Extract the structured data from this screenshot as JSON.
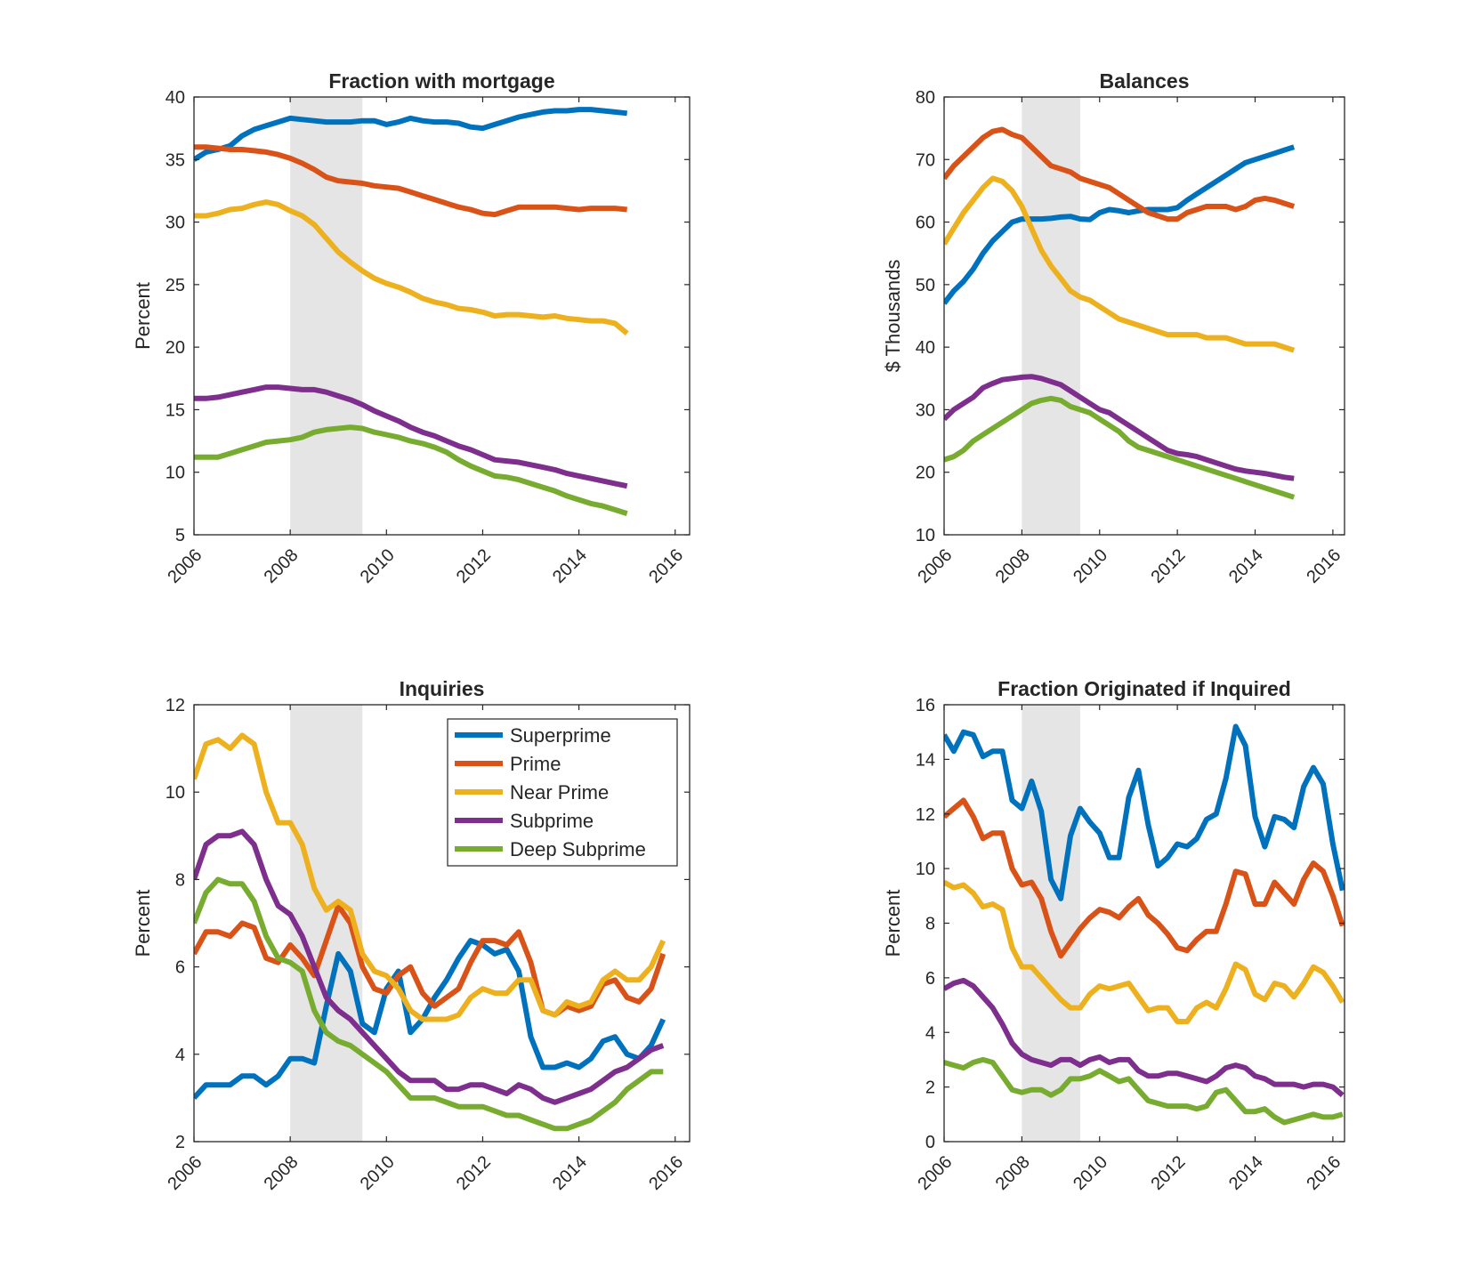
{
  "chart_data": [
    {
      "type": "line",
      "title": "Fraction with mortgage",
      "xlabel": "",
      "ylabel": "Percent",
      "xlim": [
        2006,
        2016.3
      ],
      "ylim": [
        5,
        40
      ],
      "yticks": [
        5,
        10,
        15,
        20,
        25,
        30,
        35,
        40
      ],
      "xticks": [
        2006,
        2008,
        2010,
        2012,
        2014,
        2016
      ],
      "recession": [
        2008.0,
        2009.5
      ],
      "x_start": 2006.0,
      "x_step": 0.25,
      "series": [
        {
          "name": "Superprime",
          "color": "#0072BD",
          "values": [
            35.0,
            35.6,
            35.8,
            36.1,
            36.9,
            37.4,
            37.7,
            38.0,
            38.3,
            38.2,
            38.1,
            38.0,
            38.0,
            38.0,
            38.1,
            38.1,
            37.8,
            38.0,
            38.3,
            38.1,
            38.0,
            38.0,
            37.9,
            37.6,
            37.5,
            37.8,
            38.1,
            38.4,
            38.6,
            38.8,
            38.9,
            38.9,
            39.0,
            39.0,
            38.9,
            38.8,
            38.7
          ]
        },
        {
          "name": "Prime",
          "color": "#D95319",
          "values": [
            36.0,
            36.0,
            35.9,
            35.8,
            35.8,
            35.7,
            35.6,
            35.4,
            35.1,
            34.7,
            34.2,
            33.6,
            33.3,
            33.2,
            33.1,
            32.9,
            32.8,
            32.7,
            32.4,
            32.1,
            31.8,
            31.5,
            31.2,
            31.0,
            30.7,
            30.6,
            30.9,
            31.2,
            31.2,
            31.2,
            31.2,
            31.1,
            31.0,
            31.1,
            31.1,
            31.1,
            31.0
          ]
        },
        {
          "name": "Near Prime",
          "color": "#EDB120",
          "values": [
            30.5,
            30.5,
            30.7,
            31.0,
            31.1,
            31.4,
            31.6,
            31.4,
            30.9,
            30.5,
            29.8,
            28.7,
            27.6,
            26.8,
            26.1,
            25.5,
            25.1,
            24.8,
            24.4,
            23.9,
            23.6,
            23.4,
            23.1,
            23.0,
            22.8,
            22.5,
            22.6,
            22.6,
            22.5,
            22.4,
            22.5,
            22.3,
            22.2,
            22.1,
            22.1,
            21.9,
            21.1
          ]
        },
        {
          "name": "Subprime",
          "color": "#7E2F8E",
          "values": [
            15.9,
            15.9,
            16.0,
            16.2,
            16.4,
            16.6,
            16.8,
            16.8,
            16.7,
            16.6,
            16.6,
            16.4,
            16.1,
            15.8,
            15.4,
            14.9,
            14.5,
            14.1,
            13.6,
            13.2,
            12.9,
            12.5,
            12.1,
            11.8,
            11.4,
            11.0,
            10.9,
            10.8,
            10.6,
            10.4,
            10.2,
            9.9,
            9.7,
            9.5,
            9.3,
            9.1,
            8.9
          ]
        },
        {
          "name": "Deep Subprime",
          "color": "#77AC30",
          "values": [
            11.2,
            11.2,
            11.2,
            11.5,
            11.8,
            12.1,
            12.4,
            12.5,
            12.6,
            12.8,
            13.2,
            13.4,
            13.5,
            13.6,
            13.5,
            13.2,
            13.0,
            12.8,
            12.5,
            12.3,
            12.0,
            11.6,
            11.0,
            10.5,
            10.1,
            9.7,
            9.6,
            9.4,
            9.1,
            8.8,
            8.5,
            8.1,
            7.8,
            7.5,
            7.3,
            7.0,
            6.7
          ]
        }
      ]
    },
    {
      "type": "line",
      "title": "Balances",
      "xlabel": "",
      "ylabel": "$ Thousands",
      "xlim": [
        2006,
        2016.3
      ],
      "ylim": [
        10,
        80
      ],
      "yticks": [
        10,
        20,
        30,
        40,
        50,
        60,
        70,
        80
      ],
      "xticks": [
        2006,
        2008,
        2010,
        2012,
        2014,
        2016
      ],
      "recession": [
        2008.0,
        2009.5
      ],
      "x_start": 2006.0,
      "x_step": 0.25,
      "series": [
        {
          "name": "Superprime",
          "color": "#0072BD",
          "values": [
            47.0,
            49.0,
            50.5,
            52.5,
            55.0,
            57.0,
            58.5,
            60.0,
            60.5,
            60.5,
            60.5,
            60.6,
            60.8,
            60.9,
            60.5,
            60.4,
            61.5,
            62.0,
            61.8,
            61.5,
            61.8,
            62.0,
            62.0,
            62.0,
            62.3,
            63.5,
            64.5,
            65.5,
            66.5,
            67.5,
            68.5,
            69.5,
            70.0,
            70.5,
            71.0,
            71.5,
            72.0
          ]
        },
        {
          "name": "Prime",
          "color": "#D95319",
          "values": [
            67.0,
            69.0,
            70.5,
            72.0,
            73.5,
            74.5,
            74.8,
            74.0,
            73.5,
            72.0,
            70.5,
            69.0,
            68.5,
            68.0,
            67.0,
            66.5,
            66.0,
            65.5,
            64.5,
            63.5,
            62.5,
            61.5,
            61.0,
            60.5,
            60.5,
            61.5,
            62.0,
            62.5,
            62.5,
            62.5,
            62.0,
            62.5,
            63.5,
            63.8,
            63.5,
            63.0,
            62.5
          ]
        },
        {
          "name": "Near Prime",
          "color": "#EDB120",
          "values": [
            56.5,
            59.0,
            61.5,
            63.5,
            65.5,
            67.0,
            66.5,
            65.0,
            62.5,
            59.0,
            55.5,
            53.0,
            51.0,
            49.0,
            48.0,
            47.5,
            46.5,
            45.5,
            44.5,
            44.0,
            43.5,
            43.0,
            42.5,
            42.0,
            42.0,
            42.0,
            42.0,
            41.5,
            41.5,
            41.5,
            41.0,
            40.5,
            40.5,
            40.5,
            40.5,
            40.0,
            39.5
          ]
        },
        {
          "name": "Subprime",
          "color": "#7E2F8E",
          "values": [
            28.5,
            30.0,
            31.0,
            32.0,
            33.5,
            34.2,
            34.8,
            35.0,
            35.2,
            35.3,
            35.0,
            34.5,
            34.0,
            33.0,
            32.0,
            31.0,
            30.0,
            29.5,
            28.5,
            27.5,
            26.5,
            25.5,
            24.5,
            23.5,
            23.0,
            22.8,
            22.5,
            22.0,
            21.5,
            21.0,
            20.5,
            20.2,
            20.0,
            19.8,
            19.5,
            19.2,
            19.0
          ]
        },
        {
          "name": "Deep Subprime",
          "color": "#77AC30",
          "values": [
            22.0,
            22.5,
            23.5,
            25.0,
            26.0,
            27.0,
            28.0,
            29.0,
            30.0,
            31.0,
            31.5,
            31.8,
            31.5,
            30.5,
            30.0,
            29.5,
            28.5,
            27.5,
            26.5,
            25.0,
            24.0,
            23.5,
            23.0,
            22.5,
            22.0,
            21.5,
            21.0,
            20.5,
            20.0,
            19.5,
            19.0,
            18.5,
            18.0,
            17.5,
            17.0,
            16.5,
            16.0
          ]
        }
      ]
    },
    {
      "type": "line",
      "title": "Inquiries",
      "xlabel": "",
      "ylabel": "Percent",
      "xlim": [
        2006,
        2016.3
      ],
      "ylim": [
        2,
        12
      ],
      "yticks": [
        2,
        4,
        6,
        8,
        10,
        12
      ],
      "xticks": [
        2006,
        2008,
        2010,
        2012,
        2014,
        2016
      ],
      "recession": [
        2008.0,
        2009.5
      ],
      "legend": "top-right",
      "x_start": 2006.0,
      "x_step": 0.25,
      "series": [
        {
          "name": "Superprime",
          "color": "#0072BD",
          "values": [
            3.0,
            3.3,
            3.3,
            3.3,
            3.5,
            3.5,
            3.3,
            3.5,
            3.9,
            3.9,
            3.8,
            5.1,
            6.3,
            5.9,
            4.7,
            4.5,
            5.5,
            5.9,
            4.5,
            4.8,
            5.3,
            5.7,
            6.2,
            6.6,
            6.5,
            6.3,
            6.4,
            5.9,
            4.4,
            3.7,
            3.7,
            3.8,
            3.7,
            3.9,
            4.3,
            4.4,
            4.0,
            3.9,
            4.2,
            4.8
          ]
        },
        {
          "name": "Prime",
          "color": "#D95319",
          "values": [
            6.3,
            6.8,
            6.8,
            6.7,
            7.0,
            6.9,
            6.2,
            6.1,
            6.5,
            6.2,
            5.8,
            6.6,
            7.4,
            7.0,
            6.0,
            5.5,
            5.4,
            5.8,
            6.0,
            5.4,
            5.1,
            5.3,
            5.5,
            6.1,
            6.6,
            6.6,
            6.5,
            6.8,
            6.1,
            5.0,
            4.9,
            5.1,
            5.0,
            5.1,
            5.6,
            5.7,
            5.3,
            5.2,
            5.5,
            6.3
          ]
        },
        {
          "name": "Near Prime",
          "color": "#EDB120",
          "values": [
            10.3,
            11.1,
            11.2,
            11.0,
            11.3,
            11.1,
            10.0,
            9.3,
            9.3,
            8.8,
            7.8,
            7.3,
            7.5,
            7.3,
            6.3,
            5.9,
            5.8,
            5.5,
            5.0,
            4.8,
            4.8,
            4.8,
            4.9,
            5.3,
            5.5,
            5.4,
            5.4,
            5.7,
            5.7,
            5.0,
            4.9,
            5.2,
            5.1,
            5.2,
            5.7,
            5.9,
            5.7,
            5.7,
            6.0,
            6.6
          ]
        },
        {
          "name": "Subprime",
          "color": "#7E2F8E",
          "values": [
            8.0,
            8.8,
            9.0,
            9.0,
            9.1,
            8.8,
            8.0,
            7.4,
            7.2,
            6.7,
            6.0,
            5.3,
            5.0,
            4.8,
            4.5,
            4.2,
            3.9,
            3.6,
            3.4,
            3.4,
            3.4,
            3.2,
            3.2,
            3.3,
            3.3,
            3.2,
            3.1,
            3.3,
            3.2,
            3.0,
            2.9,
            3.0,
            3.1,
            3.2,
            3.4,
            3.6,
            3.7,
            3.9,
            4.1,
            4.2
          ]
        },
        {
          "name": "Deep Subprime",
          "color": "#77AC30",
          "values": [
            7.0,
            7.7,
            8.0,
            7.9,
            7.9,
            7.5,
            6.7,
            6.2,
            6.1,
            5.9,
            5.0,
            4.5,
            4.3,
            4.2,
            4.0,
            3.8,
            3.6,
            3.3,
            3.0,
            3.0,
            3.0,
            2.9,
            2.8,
            2.8,
            2.8,
            2.7,
            2.6,
            2.6,
            2.5,
            2.4,
            2.3,
            2.3,
            2.4,
            2.5,
            2.7,
            2.9,
            3.2,
            3.4,
            3.6,
            3.6
          ]
        }
      ]
    },
    {
      "type": "line",
      "title": "Fraction Originated if Inquired",
      "xlabel": "",
      "ylabel": "Percent",
      "xlim": [
        2006,
        2016.3
      ],
      "ylim": [
        0,
        16
      ],
      "yticks": [
        0,
        2,
        4,
        6,
        8,
        10,
        12,
        14,
        16
      ],
      "xticks": [
        2006,
        2008,
        2010,
        2012,
        2014,
        2016
      ],
      "recession": [
        2008.0,
        2009.5
      ],
      "x_start": 2006.0,
      "x_step": 0.25,
      "series": [
        {
          "name": "Superprime",
          "color": "#0072BD",
          "values": [
            14.9,
            14.3,
            15.0,
            14.9,
            14.1,
            14.3,
            14.3,
            12.5,
            12.2,
            13.2,
            12.1,
            9.6,
            8.9,
            11.2,
            12.2,
            11.7,
            11.3,
            10.4,
            10.4,
            12.6,
            13.6,
            11.6,
            10.1,
            10.4,
            10.9,
            10.8,
            11.1,
            11.8,
            12.0,
            13.3,
            15.2,
            14.5,
            11.9,
            10.8,
            11.9,
            11.8,
            11.5,
            13.0,
            13.7,
            13.1,
            10.9,
            9.2
          ]
        },
        {
          "name": "Prime",
          "color": "#D95319",
          "values": [
            11.9,
            12.2,
            12.5,
            11.9,
            11.1,
            11.3,
            11.3,
            10.0,
            9.4,
            9.5,
            8.9,
            7.7,
            6.8,
            7.3,
            7.8,
            8.2,
            8.5,
            8.4,
            8.2,
            8.6,
            8.9,
            8.3,
            8.0,
            7.6,
            7.1,
            7.0,
            7.4,
            7.7,
            7.7,
            8.7,
            9.9,
            9.8,
            8.7,
            8.7,
            9.5,
            9.1,
            8.7,
            9.6,
            10.2,
            9.9,
            9.0,
            7.9
          ]
        },
        {
          "name": "Near Prime",
          "color": "#EDB120",
          "values": [
            9.5,
            9.3,
            9.4,
            9.1,
            8.6,
            8.7,
            8.5,
            7.1,
            6.4,
            6.4,
            6.0,
            5.6,
            5.2,
            4.9,
            4.9,
            5.4,
            5.7,
            5.6,
            5.7,
            5.8,
            5.3,
            4.8,
            4.9,
            4.9,
            4.4,
            4.4,
            4.9,
            5.1,
            4.9,
            5.6,
            6.5,
            6.3,
            5.4,
            5.2,
            5.8,
            5.7,
            5.3,
            5.8,
            6.4,
            6.2,
            5.7,
            5.1
          ]
        },
        {
          "name": "Subprime",
          "color": "#7E2F8E",
          "values": [
            5.6,
            5.8,
            5.9,
            5.7,
            5.3,
            4.9,
            4.3,
            3.6,
            3.2,
            3.0,
            2.9,
            2.8,
            3.0,
            3.0,
            2.8,
            3.0,
            3.1,
            2.9,
            3.0,
            3.0,
            2.6,
            2.4,
            2.4,
            2.5,
            2.5,
            2.4,
            2.3,
            2.2,
            2.4,
            2.7,
            2.8,
            2.7,
            2.4,
            2.3,
            2.1,
            2.1,
            2.1,
            2.0,
            2.1,
            2.1,
            2.0,
            1.7
          ]
        },
        {
          "name": "Deep Subprime",
          "color": "#77AC30",
          "values": [
            2.9,
            2.8,
            2.7,
            2.9,
            3.0,
            2.9,
            2.4,
            1.9,
            1.8,
            1.9,
            1.9,
            1.7,
            1.9,
            2.3,
            2.3,
            2.4,
            2.6,
            2.4,
            2.2,
            2.3,
            1.9,
            1.5,
            1.4,
            1.3,
            1.3,
            1.3,
            1.2,
            1.3,
            1.8,
            1.9,
            1.5,
            1.1,
            1.1,
            1.2,
            0.9,
            0.7,
            0.8,
            0.9,
            1.0,
            0.9,
            0.9,
            1.0
          ]
        }
      ]
    }
  ]
}
